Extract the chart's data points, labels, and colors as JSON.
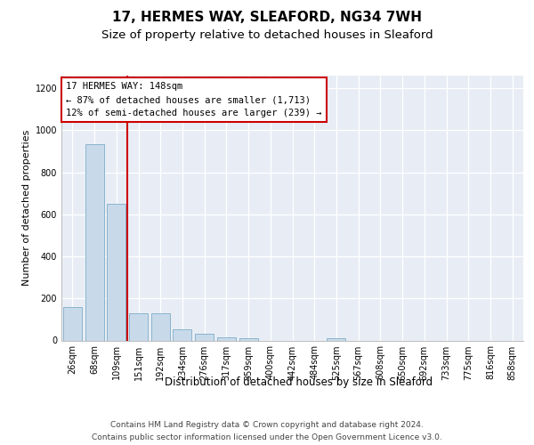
{
  "title": "17, HERMES WAY, SLEAFORD, NG34 7WH",
  "subtitle": "Size of property relative to detached houses in Sleaford",
  "xlabel": "Distribution of detached houses by size in Sleaford",
  "ylabel": "Number of detached properties",
  "footnote1": "Contains HM Land Registry data © Crown copyright and database right 2024.",
  "footnote2": "Contains public sector information licensed under the Open Government Licence v3.0.",
  "categories": [
    "26sqm",
    "68sqm",
    "109sqm",
    "151sqm",
    "192sqm",
    "234sqm",
    "276sqm",
    "317sqm",
    "359sqm",
    "400sqm",
    "442sqm",
    "484sqm",
    "525sqm",
    "567sqm",
    "608sqm",
    "650sqm",
    "692sqm",
    "733sqm",
    "775sqm",
    "816sqm",
    "858sqm"
  ],
  "values": [
    160,
    935,
    650,
    130,
    128,
    55,
    30,
    15,
    10,
    0,
    0,
    0,
    10,
    0,
    0,
    0,
    0,
    0,
    0,
    0,
    0
  ],
  "bar_color": "#c8daea",
  "bar_edge_color": "#8ab4cc",
  "red_line_color": "#cc0000",
  "annotation_text": "17 HERMES WAY: 148sqm\n← 87% of detached houses are smaller (1,713)\n12% of semi-detached houses are larger (239) →",
  "annotation_box_facecolor": "#ffffff",
  "annotation_box_edgecolor": "#cc0000",
  "ylim": [
    0,
    1260
  ],
  "yticks": [
    0,
    200,
    400,
    600,
    800,
    1000,
    1200
  ],
  "plot_bg_color": "#e8edf5",
  "grid_color": "#ffffff",
  "title_fontsize": 11,
  "subtitle_fontsize": 9.5,
  "ylabel_fontsize": 8,
  "xlabel_fontsize": 8.5,
  "tick_fontsize": 7,
  "annotation_fontsize": 7.5,
  "footnote_fontsize": 6.5
}
